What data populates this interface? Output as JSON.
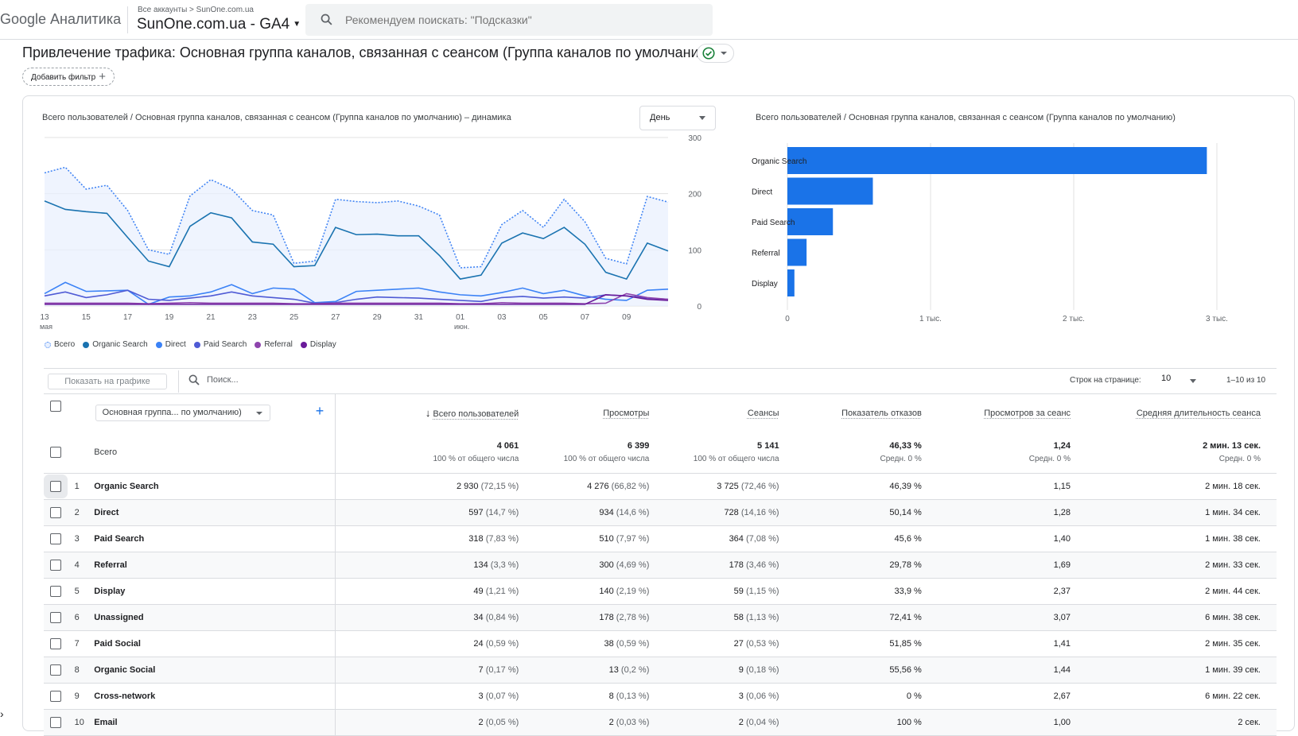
{
  "header": {
    "brand": "Google Аналитика",
    "breadcrumb": "Все аккаунты > SunOne.com.ua",
    "account_name": "SunOne.com.ua - GA4",
    "search_placeholder": "Рекомендуем поискать: \"Подсказки\""
  },
  "page": {
    "title": "Привлечение трафика: Основная группа каналов, связанная с сеансом (Группа каналов по умолчанию)",
    "add_filter": "Добавить фильтр"
  },
  "line_chart": {
    "title": "Всего пользователей / Основная группа каналов, связанная с сеансом (Группа каналов по умолчанию) – динамика",
    "granularity": "День",
    "legend": [
      {
        "label": "Всего",
        "color": "#4285f4"
      },
      {
        "label": "Organic Search",
        "color": "#1a73b0"
      },
      {
        "label": "Direct",
        "color": "#3b82f6"
      },
      {
        "label": "Paid Search",
        "color": "#4f5bd5"
      },
      {
        "label": "Referral",
        "color": "#8e44ad"
      },
      {
        "label": "Display",
        "color": "#6a1b9a"
      }
    ]
  },
  "bar_chart": {
    "title": "Всего пользователей / Основная группа каналов, связанная с сеансом (Группа каналов по умолчанию)"
  },
  "chart_data": [
    {
      "type": "line",
      "x_ticks": [
        "13",
        "15",
        "17",
        "19",
        "21",
        "23",
        "25",
        "27",
        "29",
        "31",
        "01",
        "03",
        "05",
        "07",
        "09"
      ],
      "x_sub": {
        "13": "мая",
        "01": "июн."
      },
      "ylim": [
        0,
        300
      ],
      "yticks": [
        "300",
        "200",
        "100",
        "0"
      ],
      "series": [
        {
          "name": "Всего",
          "values": [
            237,
            247,
            208,
            215,
            170,
            100,
            92,
            196,
            225,
            208,
            170,
            162,
            76,
            80,
            190,
            186,
            184,
            187,
            178,
            162,
            68,
            70,
            145,
            170,
            140,
            190,
            150,
            85,
            75,
            195,
            185
          ]
        },
        {
          "name": "Organic Search",
          "values": [
            187,
            172,
            168,
            165,
            122,
            80,
            70,
            142,
            166,
            157,
            114,
            110,
            70,
            72,
            140,
            127,
            128,
            125,
            125,
            90,
            48,
            55,
            112,
            130,
            120,
            140,
            110,
            60,
            48,
            112,
            98
          ]
        },
        {
          "name": "Direct",
          "values": [
            22,
            42,
            26,
            27,
            28,
            3,
            16,
            18,
            25,
            38,
            22,
            32,
            30,
            6,
            8,
            26,
            28,
            30,
            32,
            25,
            20,
            18,
            24,
            32,
            22,
            28,
            18,
            12,
            10,
            28,
            30
          ]
        },
        {
          "name": "Paid Search",
          "values": [
            18,
            25,
            15,
            20,
            28,
            12,
            10,
            14,
            18,
            25,
            18,
            15,
            12,
            5,
            6,
            12,
            16,
            15,
            14,
            12,
            10,
            8,
            15,
            17,
            14,
            16,
            14,
            20,
            18,
            14,
            12
          ]
        },
        {
          "name": "Referral",
          "values": [
            5,
            5,
            5,
            5,
            5,
            4,
            5,
            6,
            5,
            5,
            5,
            5,
            4,
            4,
            5,
            5,
            5,
            5,
            5,
            5,
            4,
            4,
            6,
            5,
            5,
            5,
            4,
            5,
            22,
            15,
            12
          ]
        },
        {
          "name": "Display",
          "values": [
            3,
            3,
            3,
            3,
            3,
            3,
            3,
            3,
            3,
            3,
            3,
            3,
            3,
            3,
            3,
            3,
            3,
            3,
            3,
            3,
            3,
            3,
            3,
            3,
            3,
            3,
            3,
            20,
            18,
            12,
            10
          ]
        }
      ]
    },
    {
      "type": "bar",
      "orientation": "horizontal",
      "categories": [
        "Organic Search",
        "Direct",
        "Paid Search",
        "Referral",
        "Display"
      ],
      "values": [
        2930,
        597,
        318,
        134,
        49
      ],
      "xlim": [
        0,
        3000
      ],
      "xticks": [
        "0",
        "1 тыс.",
        "2 тыс.",
        "3 тыс."
      ],
      "color": "#1a73e8"
    }
  ],
  "toolbar": {
    "plot_button": "Показать на графике",
    "search_placeholder": "Поиск...",
    "rows_per_page_label": "Строк на странице:",
    "rows_per_page": "10",
    "pagination": "1–10 из 10"
  },
  "table": {
    "dimension_select": "Основная группа... по умолчанию)",
    "columns": [
      "Всего пользователей",
      "Просмотры",
      "Сеансы",
      "Показатель отказов",
      "Просмотров за сеанс",
      "Средняя длительность сеанса"
    ],
    "total": {
      "label": "Всего",
      "values": [
        "4 061",
        "6 399",
        "5 141",
        "46,33 %",
        "1,24",
        "2 мин. 13 сек."
      ],
      "subs": [
        "100 % от общего числа",
        "100 % от общего числа",
        "100 % от общего числа",
        "Средн. 0 %",
        "Средн. 0 %",
        "Средн. 0 %"
      ]
    },
    "rows": [
      {
        "idx": "1",
        "name": "Organic Search",
        "users": "2 930",
        "users_pct": "(72,15 %)",
        "views": "4 276",
        "views_pct": "(66,82 %)",
        "sessions": "3 725",
        "sessions_pct": "(72,46 %)",
        "bounce": "46,39 %",
        "vps": "1,15",
        "dur": "2 мин. 18 сек."
      },
      {
        "idx": "2",
        "name": "Direct",
        "users": "597",
        "users_pct": "(14,7 %)",
        "views": "934",
        "views_pct": "(14,6 %)",
        "sessions": "728",
        "sessions_pct": "(14,16 %)",
        "bounce": "50,14 %",
        "vps": "1,28",
        "dur": "1 мин. 34 сек."
      },
      {
        "idx": "3",
        "name": "Paid Search",
        "users": "318",
        "users_pct": "(7,83 %)",
        "views": "510",
        "views_pct": "(7,97 %)",
        "sessions": "364",
        "sessions_pct": "(7,08 %)",
        "bounce": "45,6 %",
        "vps": "1,40",
        "dur": "1 мин. 38 сек."
      },
      {
        "idx": "4",
        "name": "Referral",
        "users": "134",
        "users_pct": "(3,3 %)",
        "views": "300",
        "views_pct": "(4,69 %)",
        "sessions": "178",
        "sessions_pct": "(3,46 %)",
        "bounce": "29,78 %",
        "vps": "1,69",
        "dur": "2 мин. 33 сек."
      },
      {
        "idx": "5",
        "name": "Display",
        "users": "49",
        "users_pct": "(1,21 %)",
        "views": "140",
        "views_pct": "(2,19 %)",
        "sessions": "59",
        "sessions_pct": "(1,15 %)",
        "bounce": "33,9 %",
        "vps": "2,37",
        "dur": "2 мин. 44 сек."
      },
      {
        "idx": "6",
        "name": "Unassigned",
        "users": "34",
        "users_pct": "(0,84 %)",
        "views": "178",
        "views_pct": "(2,78 %)",
        "sessions": "58",
        "sessions_pct": "(1,13 %)",
        "bounce": "72,41 %",
        "vps": "3,07",
        "dur": "6 мин. 38 сек."
      },
      {
        "idx": "7",
        "name": "Paid Social",
        "users": "24",
        "users_pct": "(0,59 %)",
        "views": "38",
        "views_pct": "(0,59 %)",
        "sessions": "27",
        "sessions_pct": "(0,53 %)",
        "bounce": "51,85 %",
        "vps": "1,41",
        "dur": "2 мин. 35 сек."
      },
      {
        "idx": "8",
        "name": "Organic Social",
        "users": "7",
        "users_pct": "(0,17 %)",
        "views": "13",
        "views_pct": "(0,2 %)",
        "sessions": "9",
        "sessions_pct": "(0,18 %)",
        "bounce": "55,56 %",
        "vps": "1,44",
        "dur": "1 мин. 39 сек."
      },
      {
        "idx": "9",
        "name": "Cross-network",
        "users": "3",
        "users_pct": "(0,07 %)",
        "views": "8",
        "views_pct": "(0,13 %)",
        "sessions": "3",
        "sessions_pct": "(0,06 %)",
        "bounce": "0 %",
        "vps": "2,67",
        "dur": "6 мин. 22 сек."
      },
      {
        "idx": "10",
        "name": "Email",
        "users": "2",
        "users_pct": "(0,05 %)",
        "views": "2",
        "views_pct": "(0,03 %)",
        "sessions": "2",
        "sessions_pct": "(0,04 %)",
        "bounce": "100 %",
        "vps": "1,00",
        "dur": "2 сек."
      }
    ]
  }
}
